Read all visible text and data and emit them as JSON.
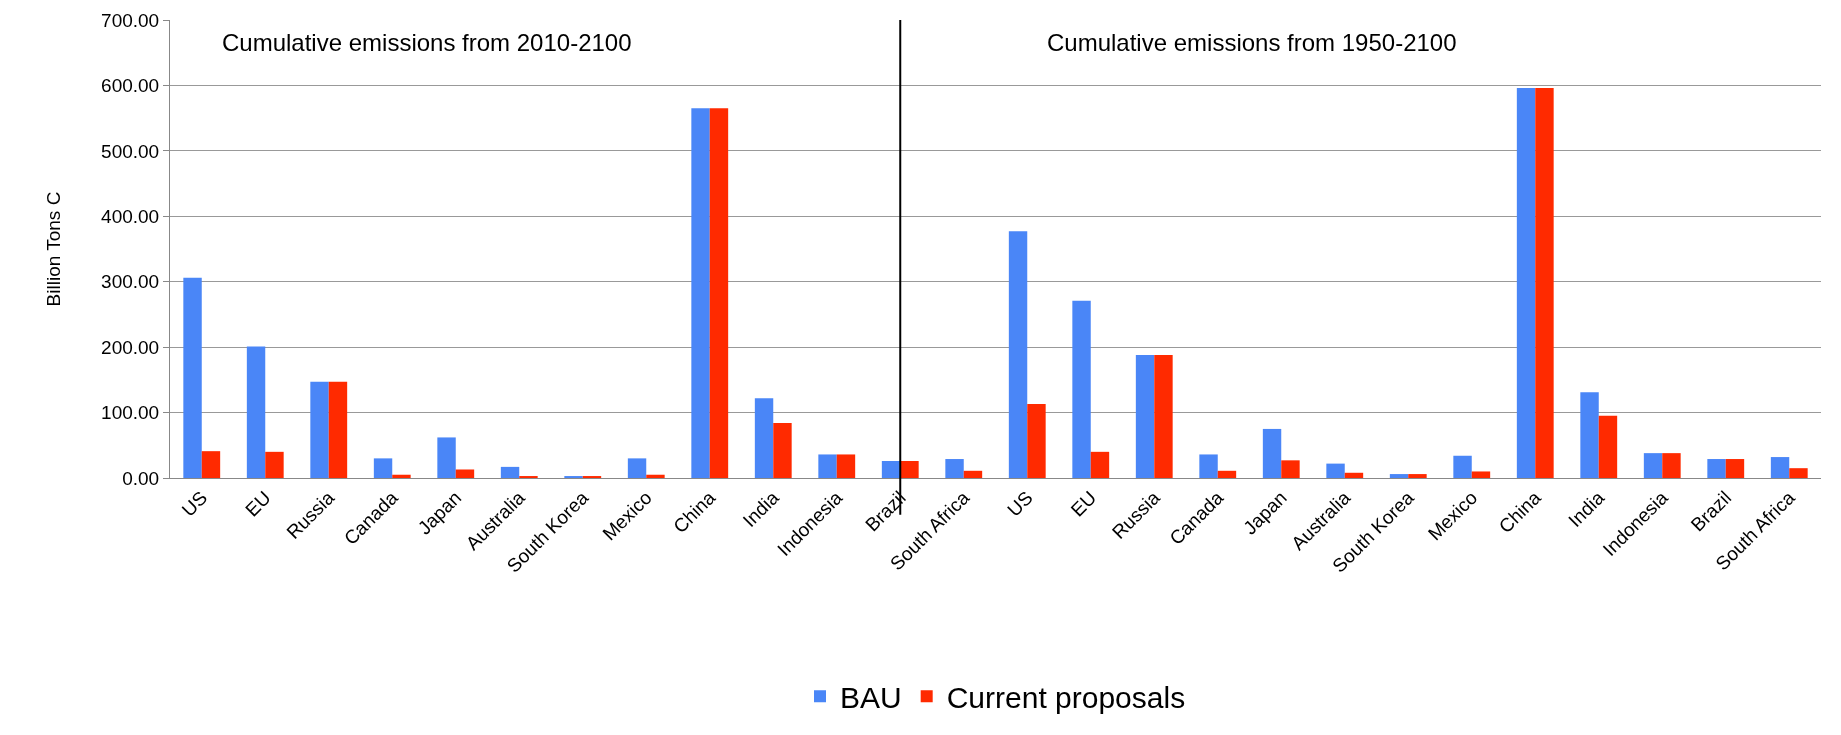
{
  "chart_data": {
    "type": "bar",
    "ylabel": "Billion Tons C",
    "categories": [
      "US",
      "EU",
      "Russia",
      "Canada",
      "Japan",
      "Australia",
      "South Korea",
      "Mexico",
      "China",
      "India",
      "Indonesia",
      "Brazil",
      "South Africa",
      "US",
      "EU",
      "Russia",
      "Canada",
      "Japan",
      "Australia",
      "South Korea",
      "Mexico",
      "China",
      "India",
      "Indonesia",
      "Brazil",
      "South Africa"
    ],
    "series": [
      {
        "name": "BAU",
        "color": "#4a86f7",
        "values": [
          306,
          201,
          147,
          30,
          62,
          17,
          3,
          30,
          565,
          122,
          36,
          26,
          29,
          377,
          271,
          188,
          36,
          75,
          22,
          6,
          34,
          596,
          131,
          38,
          29,
          32
        ]
      },
      {
        "name": "Current proposals",
        "color": "#ff2a00",
        "values": [
          41,
          40,
          147,
          5,
          13,
          3,
          3,
          5,
          565,
          84,
          36,
          26,
          11,
          113,
          40,
          188,
          11,
          27,
          8,
          6,
          10,
          596,
          95,
          38,
          29,
          15
        ]
      }
    ],
    "ylim": [
      0,
      700
    ],
    "yticks": [
      {
        "value": 0,
        "label": "0.00"
      },
      {
        "value": 100,
        "label": "100.00"
      },
      {
        "value": 200,
        "label": "200.00"
      },
      {
        "value": 300,
        "label": "300.00"
      },
      {
        "value": 400,
        "label": "400.00"
      },
      {
        "value": 500,
        "label": "500.00"
      },
      {
        "value": 600,
        "label": "600.00"
      },
      {
        "value": 700,
        "label": "700.00"
      }
    ],
    "annotations": [
      {
        "text": "Cumulative emissions from 2010-2100"
      },
      {
        "text": "Cumulative emissions from 1950-2100"
      }
    ],
    "ref_lines": [
      {
        "axis": "x",
        "value": "Brazil",
        "color": "#000000"
      }
    ],
    "grid": "y",
    "legend": "bottom"
  }
}
